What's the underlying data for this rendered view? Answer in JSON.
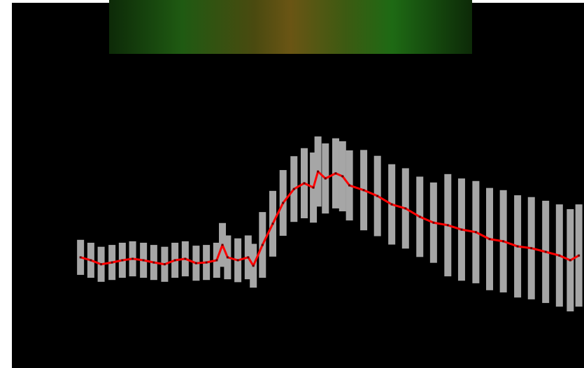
{
  "chart_data": {
    "type": "line",
    "x": [
      12.0,
      13.8,
      15.6,
      17.5,
      19.3,
      21.1,
      23.0,
      24.8,
      26.7,
      28.5,
      30.3,
      32.2,
      34.0,
      35.8,
      36.8,
      37.7,
      39.5,
      41.3,
      42.2,
      43.8,
      45.6,
      47.4,
      49.3,
      51.1,
      52.7,
      53.5,
      54.8,
      56.6,
      57.8,
      59.0,
      61.5,
      63.9,
      66.4,
      68.8,
      71.3,
      73.7,
      76.2,
      78.6,
      81.1,
      83.5,
      85.9,
      88.4,
      90.8,
      93.3,
      95.7,
      97.6,
      99.1
    ],
    "series": [
      {
        "color": "#ff0000",
        "error_color": "#a6a6a6",
        "values": [
          30.3,
          29.5,
          28.4,
          28.9,
          29.5,
          29.9,
          29.5,
          28.9,
          28.4,
          29.5,
          29.9,
          28.7,
          28.9,
          29.5,
          33.7,
          30.3,
          29.5,
          30.3,
          28.0,
          33.7,
          39.5,
          45.2,
          49.0,
          50.6,
          49.4,
          53.8,
          51.9,
          53.3,
          52.5,
          50.0,
          48.7,
          47.1,
          44.8,
          43.7,
          41.4,
          39.8,
          39.1,
          37.9,
          37.2,
          35.3,
          34.7,
          33.3,
          32.8,
          31.8,
          30.8,
          29.5,
          30.8
        ],
        "errors": [
          4.8,
          4.8,
          4.8,
          4.8,
          4.8,
          4.8,
          4.8,
          4.8,
          4.8,
          4.8,
          4.8,
          4.8,
          4.8,
          4.8,
          6,
          6,
          6,
          6,
          6,
          9,
          9,
          9,
          9,
          9.6,
          9.6,
          9.6,
          9.6,
          9.6,
          9.6,
          9.6,
          11,
          11,
          11,
          11,
          11,
          11,
          14,
          14,
          14,
          14,
          14,
          14,
          14,
          14,
          14,
          14,
          14
        ]
      }
    ],
    "xlim": [
      0,
      100
    ],
    "ylim": [
      0,
      100
    ]
  }
}
